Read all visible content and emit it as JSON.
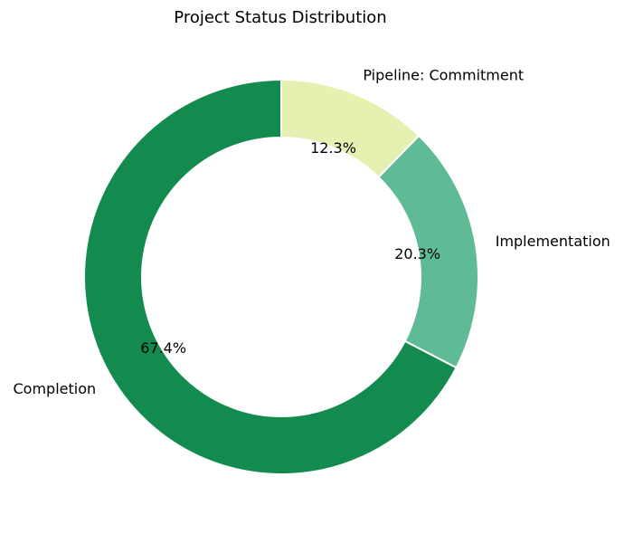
{
  "chart_data": {
    "type": "pie",
    "variant": "donut",
    "title": "Project Status Distribution",
    "start_angle_deg": 90,
    "direction": "counterclockwise",
    "slices": [
      {
        "label": "Completion",
        "value": 67.4,
        "pct_label": "67.4%",
        "color": "#138b4f"
      },
      {
        "label": "Implementation",
        "value": 20.3,
        "pct_label": "20.3%",
        "color": "#5fba96"
      },
      {
        "label": "Pipeline: Commitment",
        "value": 12.3,
        "pct_label": "12.3%",
        "color": "#e4f1b1"
      }
    ],
    "legend": false,
    "edge_color": "#ffffff"
  }
}
